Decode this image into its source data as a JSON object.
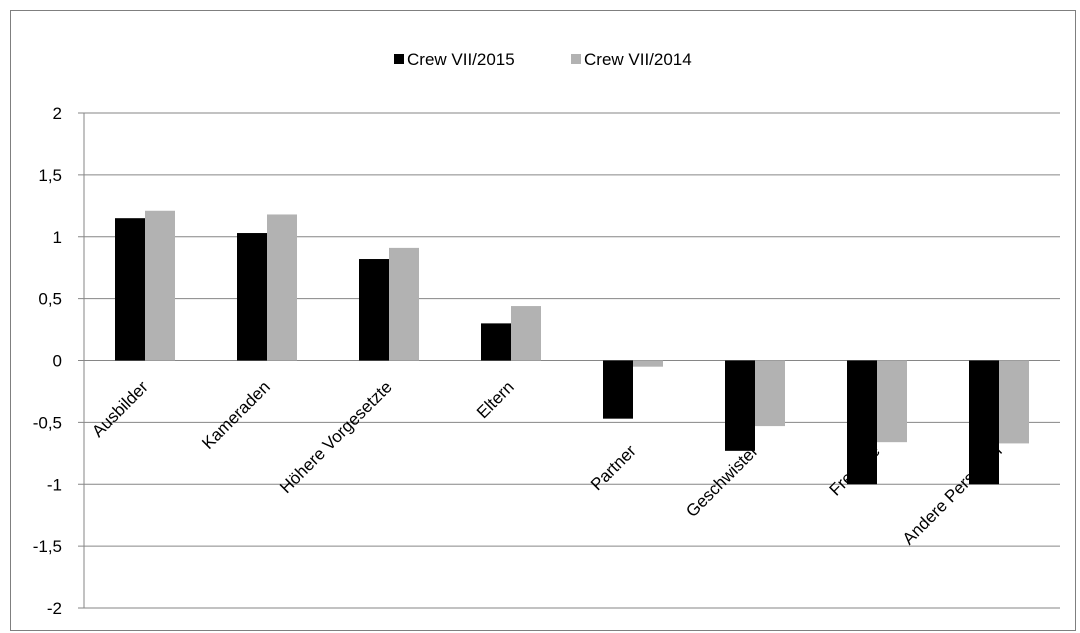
{
  "chart_data": {
    "type": "bar",
    "categories": [
      "Ausbilder",
      "Kameraden",
      "Höhere Vorgesetzte",
      "Eltern",
      "Partner",
      "Geschwister",
      "Freunde",
      "Andere Personen"
    ],
    "series": [
      {
        "name": "Crew VII/2015",
        "color": "#000000",
        "values": [
          1.15,
          1.03,
          0.82,
          0.3,
          -0.47,
          -0.73,
          -1.0,
          -1.0
        ]
      },
      {
        "name": "Crew VII/2014",
        "color": "#b2b2b2",
        "values": [
          1.21,
          1.18,
          0.91,
          0.44,
          -0.05,
          -0.53,
          -0.66,
          -0.67
        ]
      }
    ],
    "y_ticks": [
      "2",
      "1,5",
      "1",
      "0,5",
      "0",
      "-0,5",
      "-1",
      "-1,5",
      "-2"
    ],
    "ylim": [
      -2,
      2
    ],
    "grid": true,
    "legend": "top-center",
    "title": "",
    "xlabel": "",
    "ylabel": ""
  }
}
